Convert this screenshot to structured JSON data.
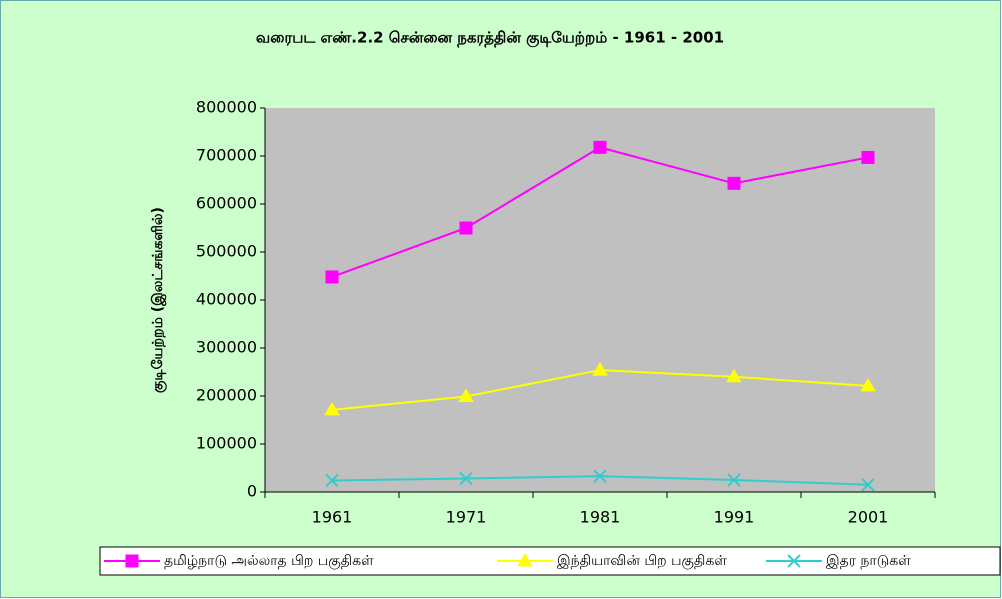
{
  "chart_data": {
    "type": "line",
    "title": "வரைபட எண்.2.2   சென்னை நகரத்தின் குடியேற்றம்  - 1961  - 2001",
    "y_label": "குடியேற்றம்  (இலட்சங்களில்)",
    "categories": [
      "1961",
      "1971",
      "1981",
      "1991",
      "2001"
    ],
    "series": [
      {
        "name": "தமிழ்நாடு அல்லாத பிற பகுதிகள்",
        "color": "#ff00ff",
        "marker": "square",
        "values": [
          448000,
          550000,
          718000,
          643000,
          697000
        ]
      },
      {
        "name": "இந்தியாவின் பிற பகுதிகள்",
        "color": "#ffff00",
        "marker": "triangle",
        "values": [
          171000,
          199000,
          254000,
          240000,
          221000
        ]
      },
      {
        "name": "இதர நாடுகள்",
        "color": "#33cccc",
        "marker": "x",
        "values": [
          24000,
          28000,
          33000,
          25000,
          15000
        ]
      }
    ],
    "ylim": [
      0,
      800000
    ],
    "yticks": [
      0,
      100000,
      200000,
      300000,
      400000,
      500000,
      600000,
      700000,
      800000
    ],
    "grid": false,
    "legend": "bottom"
  }
}
